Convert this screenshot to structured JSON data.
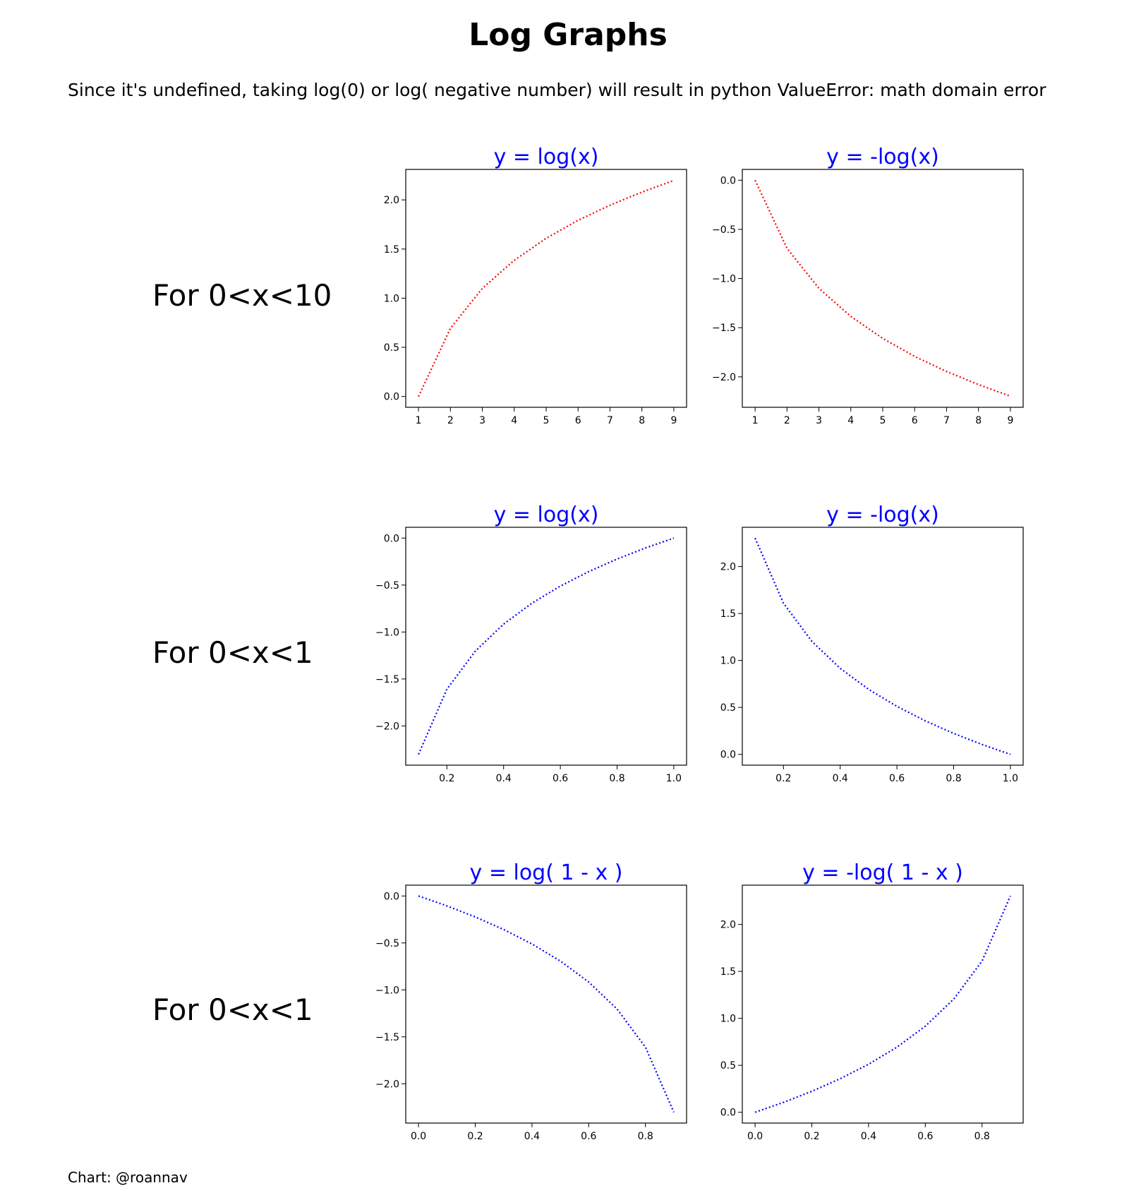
{
  "title": "Log Graphs",
  "subtitle": "Since it's undefined, taking log(0) or log( negative number) will result in python ValueError: math domain error",
  "footer": "Chart: @roannav",
  "colors": {
    "red": "#ff0000",
    "blue": "#0000ff",
    "title_blue": "#0000ff"
  },
  "rows": [
    {
      "label": "For 0<x<10"
    },
    {
      "label": "For 0<x<1"
    },
    {
      "label": "For 0<x<1"
    }
  ],
  "chart_data": [
    {
      "type": "line",
      "title": "y = log(x)",
      "line_style": "dotted",
      "color": "#ff0000",
      "x": [
        1,
        2,
        3,
        4,
        5,
        6,
        7,
        8,
        9
      ],
      "y": [
        0.0,
        0.693,
        1.099,
        1.386,
        1.609,
        1.792,
        1.946,
        2.079,
        2.197
      ],
      "xlim": [
        0.6,
        9.4
      ],
      "ylim": [
        -0.11,
        2.31
      ],
      "xticks": [
        1,
        2,
        3,
        4,
        5,
        6,
        7,
        8,
        9
      ],
      "xtick_labels": [
        "1",
        "2",
        "3",
        "4",
        "5",
        "6",
        "7",
        "8",
        "9"
      ],
      "yticks": [
        0.0,
        0.5,
        1.0,
        1.5,
        2.0
      ],
      "ytick_labels": [
        "0.0",
        "0.5",
        "1.0",
        "1.5",
        "2.0"
      ]
    },
    {
      "type": "line",
      "title": "y = -log(x)",
      "line_style": "dotted",
      "color": "#ff0000",
      "x": [
        1,
        2,
        3,
        4,
        5,
        6,
        7,
        8,
        9
      ],
      "y": [
        0.0,
        -0.693,
        -1.099,
        -1.386,
        -1.609,
        -1.792,
        -1.946,
        -2.079,
        -2.197
      ],
      "xlim": [
        0.6,
        9.4
      ],
      "ylim": [
        -2.31,
        0.11
      ],
      "xticks": [
        1,
        2,
        3,
        4,
        5,
        6,
        7,
        8,
        9
      ],
      "xtick_labels": [
        "1",
        "2",
        "3",
        "4",
        "5",
        "6",
        "7",
        "8",
        "9"
      ],
      "yticks": [
        0.0,
        -0.5,
        -1.0,
        -1.5,
        -2.0
      ],
      "ytick_labels": [
        "0.0",
        "−0.5",
        "−1.0",
        "−1.5",
        "−2.0"
      ]
    },
    {
      "type": "line",
      "title": "y = log(x)",
      "line_style": "dotted",
      "color": "#0000ff",
      "x": [
        0.1,
        0.2,
        0.3,
        0.4,
        0.5,
        0.6,
        0.7,
        0.8,
        0.9,
        1.0
      ],
      "y": [
        -2.303,
        -1.609,
        -1.204,
        -0.916,
        -0.693,
        -0.511,
        -0.357,
        -0.223,
        -0.105,
        0.0
      ],
      "xlim": [
        0.055,
        1.045
      ],
      "ylim": [
        -2.418,
        0.115
      ],
      "xticks": [
        0.2,
        0.4,
        0.6,
        0.8,
        1.0
      ],
      "xtick_labels": [
        "0.2",
        "0.4",
        "0.6",
        "0.8",
        "1.0"
      ],
      "yticks": [
        0.0,
        -0.5,
        -1.0,
        -1.5,
        -2.0
      ],
      "ytick_labels": [
        "0.0",
        "−0.5",
        "−1.0",
        "−1.5",
        "−2.0"
      ]
    },
    {
      "type": "line",
      "title": "y = -log(x)",
      "line_style": "dotted",
      "color": "#0000ff",
      "x": [
        0.1,
        0.2,
        0.3,
        0.4,
        0.5,
        0.6,
        0.7,
        0.8,
        0.9,
        1.0
      ],
      "y": [
        2.303,
        1.609,
        1.204,
        0.916,
        0.693,
        0.511,
        0.357,
        0.223,
        0.105,
        0.0
      ],
      "xlim": [
        0.055,
        1.045
      ],
      "ylim": [
        -0.115,
        2.418
      ],
      "xticks": [
        0.2,
        0.4,
        0.6,
        0.8,
        1.0
      ],
      "xtick_labels": [
        "0.2",
        "0.4",
        "0.6",
        "0.8",
        "1.0"
      ],
      "yticks": [
        0.0,
        0.5,
        1.0,
        1.5,
        2.0
      ],
      "ytick_labels": [
        "0.0",
        "0.5",
        "1.0",
        "1.5",
        "2.0"
      ]
    },
    {
      "type": "line",
      "title": "y = log( 1 - x )",
      "line_style": "dotted",
      "color": "#0000ff",
      "x": [
        0.0,
        0.1,
        0.2,
        0.3,
        0.4,
        0.5,
        0.6,
        0.7,
        0.8,
        0.9
      ],
      "y": [
        0.0,
        -0.105,
        -0.223,
        -0.357,
        -0.511,
        -0.693,
        -0.916,
        -1.204,
        -1.609,
        -2.303
      ],
      "xlim": [
        -0.045,
        0.945
      ],
      "ylim": [
        -2.418,
        0.115
      ],
      "xticks": [
        0.0,
        0.2,
        0.4,
        0.6,
        0.8
      ],
      "xtick_labels": [
        "0.0",
        "0.2",
        "0.4",
        "0.6",
        "0.8"
      ],
      "yticks": [
        0.0,
        -0.5,
        -1.0,
        -1.5,
        -2.0
      ],
      "ytick_labels": [
        "0.0",
        "−0.5",
        "−1.0",
        "−1.5",
        "−2.0"
      ]
    },
    {
      "type": "line",
      "title": "y = -log( 1 - x )",
      "line_style": "dotted",
      "color": "#0000ff",
      "x": [
        0.0,
        0.1,
        0.2,
        0.3,
        0.4,
        0.5,
        0.6,
        0.7,
        0.8,
        0.9
      ],
      "y": [
        0.0,
        0.105,
        0.223,
        0.357,
        0.511,
        0.693,
        0.916,
        1.204,
        1.609,
        2.303
      ],
      "xlim": [
        -0.045,
        0.945
      ],
      "ylim": [
        -0.115,
        2.418
      ],
      "xticks": [
        0.0,
        0.2,
        0.4,
        0.6,
        0.8
      ],
      "xtick_labels": [
        "0.0",
        "0.2",
        "0.4",
        "0.6",
        "0.8"
      ],
      "yticks": [
        0.0,
        0.5,
        1.0,
        1.5,
        2.0
      ],
      "ytick_labels": [
        "0.0",
        "0.5",
        "1.0",
        "1.5",
        "2.0"
      ]
    }
  ]
}
